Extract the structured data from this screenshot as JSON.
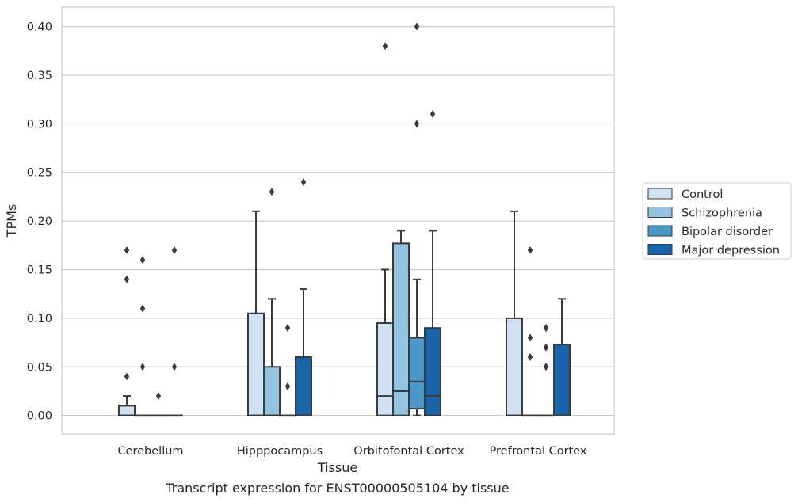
{
  "chart_data": {
    "type": "box",
    "xlabel": "Tissue",
    "ylabel": "TPMs",
    "caption": "Transcript expression for ENST00000505104 by tissue",
    "ylim": [
      -0.019,
      0.42
    ],
    "yticks": [
      0.0,
      0.05,
      0.1,
      0.15,
      0.2,
      0.25,
      0.3,
      0.35,
      0.4
    ],
    "ytick_labels": [
      "0.00",
      "0.05",
      "0.10",
      "0.15",
      "0.20",
      "0.25",
      "0.30",
      "0.35",
      "0.40"
    ],
    "grid": "horizontal",
    "legend_position": "right",
    "categories": [
      "Cerebellum",
      "Hipppocampus",
      "Orbitofontal Cortex",
      "Prefrontal Cortex"
    ],
    "series": [
      {
        "name": "Control",
        "color": "#d0e1f2",
        "boxes": [
          {
            "q1": 0.0,
            "median": 0.0,
            "q3": 0.01,
            "whislo": 0.0,
            "whishi": 0.02,
            "fliers": [
              0.17,
              0.14,
              0.04
            ]
          },
          {
            "q1": 0.0,
            "median": 0.0,
            "q3": 0.105,
            "whislo": 0.0,
            "whishi": 0.21,
            "fliers": []
          },
          {
            "q1": 0.0,
            "median": 0.02,
            "q3": 0.095,
            "whislo": 0.0,
            "whishi": 0.15,
            "fliers": [
              0.38
            ]
          },
          {
            "q1": 0.0,
            "median": 0.0,
            "q3": 0.1,
            "whislo": 0.0,
            "whishi": 0.21,
            "fliers": []
          }
        ]
      },
      {
        "name": "Schizophrenia",
        "color": "#94c4df",
        "boxes": [
          {
            "q1": 0.0,
            "median": 0.0,
            "q3": 0.0,
            "whislo": 0.0,
            "whishi": 0.0,
            "fliers": [
              0.16,
              0.11,
              0.05
            ]
          },
          {
            "q1": 0.0,
            "median": 0.0,
            "q3": 0.05,
            "whislo": 0.0,
            "whishi": 0.12,
            "fliers": [
              0.23
            ]
          },
          {
            "q1": 0.0,
            "median": 0.025,
            "q3": 0.177,
            "whislo": 0.0,
            "whishi": 0.19,
            "fliers": []
          },
          {
            "q1": 0.0,
            "median": 0.0,
            "q3": 0.0,
            "whislo": 0.0,
            "whishi": 0.0,
            "fliers": [
              0.17,
              0.08,
              0.06
            ]
          }
        ]
      },
      {
        "name": "Bipolar disorder",
        "color": "#4a98c9",
        "boxes": [
          {
            "q1": 0.0,
            "median": 0.0,
            "q3": 0.0,
            "whislo": 0.0,
            "whishi": 0.0,
            "fliers": [
              0.02
            ]
          },
          {
            "q1": 0.0,
            "median": 0.0,
            "q3": 0.0,
            "whislo": 0.0,
            "whishi": 0.0,
            "fliers": [
              0.09,
              0.03
            ]
          },
          {
            "q1": 0.007,
            "median": 0.035,
            "q3": 0.08,
            "whislo": 0.0,
            "whishi": 0.14,
            "fliers": [
              0.4,
              0.3
            ]
          },
          {
            "q1": 0.0,
            "median": 0.0,
            "q3": 0.0,
            "whislo": 0.0,
            "whishi": 0.0,
            "fliers": [
              0.09,
              0.07,
              0.05
            ]
          }
        ]
      },
      {
        "name": "Major depression",
        "color": "#1764ab",
        "boxes": [
          {
            "q1": 0.0,
            "median": 0.0,
            "q3": 0.0,
            "whislo": 0.0,
            "whishi": 0.0,
            "fliers": [
              0.17,
              0.05
            ]
          },
          {
            "q1": 0.0,
            "median": 0.0,
            "q3": 0.06,
            "whislo": 0.0,
            "whishi": 0.13,
            "fliers": [
              0.24
            ]
          },
          {
            "q1": 0.0,
            "median": 0.02,
            "q3": 0.09,
            "whislo": 0.0,
            "whishi": 0.19,
            "fliers": [
              0.31
            ]
          },
          {
            "q1": 0.0,
            "median": 0.0,
            "q3": 0.073,
            "whislo": 0.0,
            "whishi": 0.12,
            "fliers": []
          }
        ]
      }
    ]
  }
}
